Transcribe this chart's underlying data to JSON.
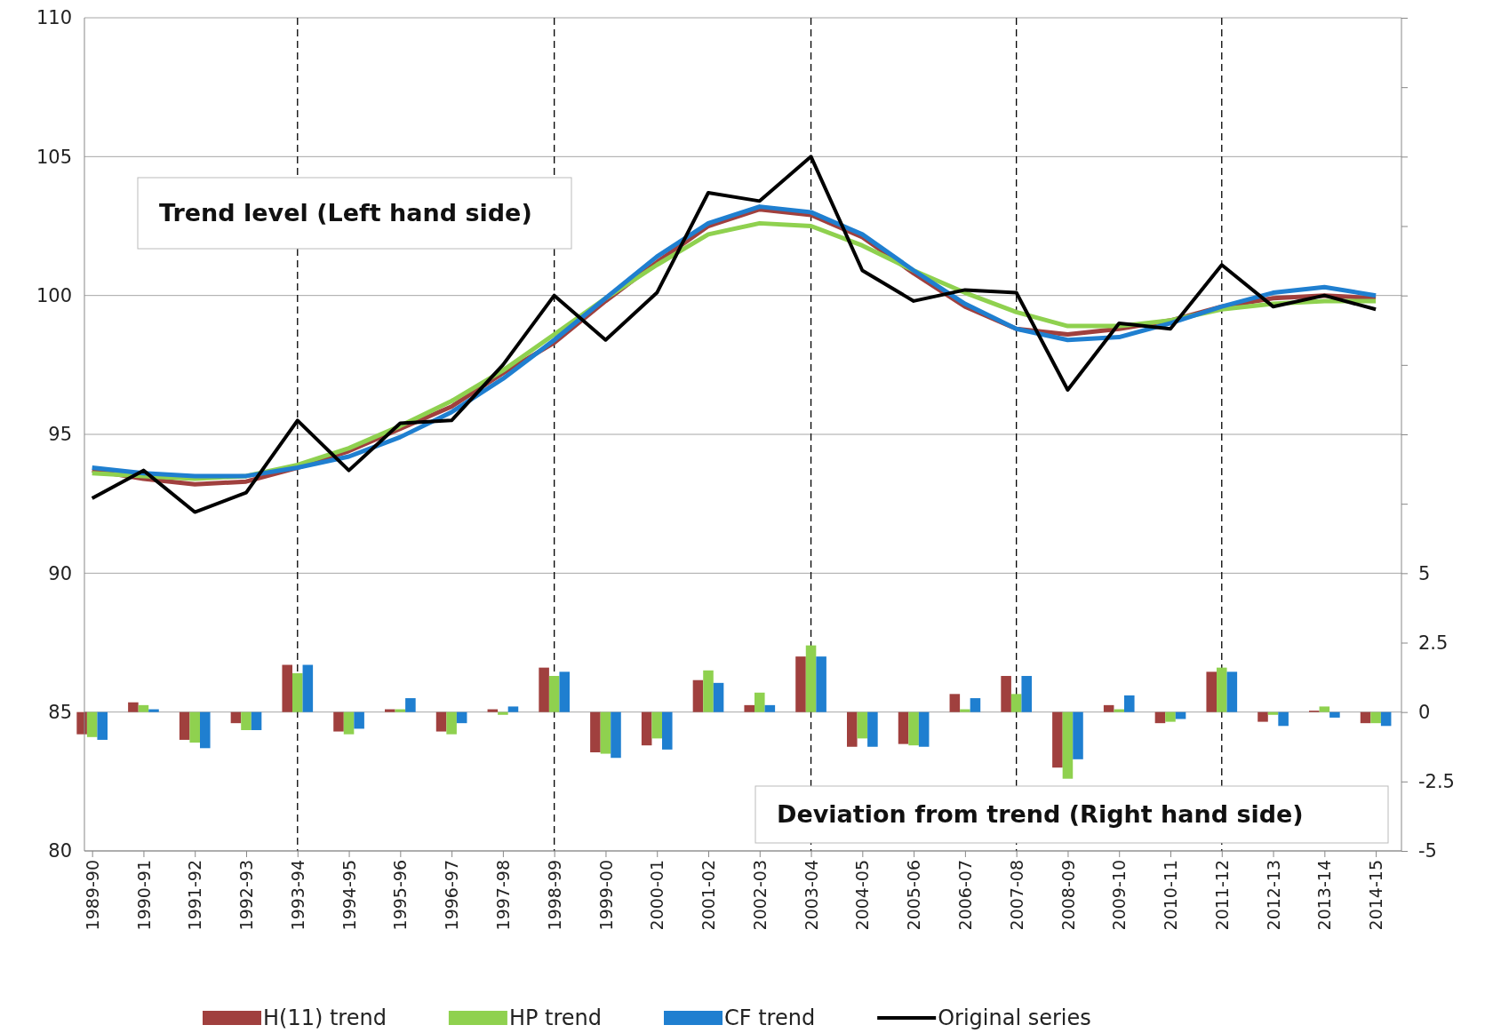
{
  "chart_data": {
    "type": "line",
    "categories": [
      "1989-90",
      "1990-91",
      "1991-92",
      "1992-93",
      "1993-94",
      "1994-95",
      "1995-96",
      "1996-97",
      "1997-98",
      "1998-99",
      "1999-00",
      "2000-01",
      "2001-02",
      "2002-03",
      "2003-04",
      "2004-05",
      "2005-06",
      "2006-07",
      "2007-08",
      "2008-09",
      "2009-10",
      "2010-11",
      "2011-12",
      "2012-13",
      "2013-14",
      "2014-15"
    ],
    "series": [
      {
        "name": "H(11) trend",
        "type": "bar",
        "axis": "y2",
        "color": "#a0403e",
        "values": [
          -0.8,
          0.35,
          -1.0,
          -0.4,
          1.7,
          -0.7,
          0.1,
          -0.7,
          0.1,
          1.6,
          -1.45,
          -1.2,
          1.15,
          0.25,
          2.0,
          -1.25,
          -1.15,
          0.65,
          1.3,
          -2.0,
          0.25,
          -0.4,
          1.45,
          -0.35,
          0.05,
          -0.4
        ]
      },
      {
        "name": "HP trend",
        "type": "bar",
        "axis": "y2",
        "color": "#8fd14f",
        "values": [
          -0.9,
          0.25,
          -1.1,
          -0.65,
          1.4,
          -0.8,
          0.1,
          -0.8,
          -0.1,
          1.3,
          -1.5,
          -0.95,
          1.5,
          0.7,
          2.4,
          -0.95,
          -1.2,
          0.1,
          0.65,
          -2.4,
          0.1,
          -0.35,
          1.6,
          -0.1,
          0.2,
          -0.4
        ]
      },
      {
        "name": "CF trend",
        "type": "bar",
        "axis": "y2",
        "color": "#1f7fd0",
        "values": [
          -1.0,
          0.1,
          -1.3,
          -0.65,
          1.7,
          -0.6,
          0.5,
          -0.4,
          0.2,
          1.45,
          -1.65,
          -1.35,
          1.05,
          0.25,
          2.0,
          -1.25,
          -1.25,
          0.5,
          1.3,
          -1.7,
          0.6,
          -0.25,
          1.45,
          -0.5,
          -0.2,
          -0.5
        ]
      },
      {
        "color": "#a0403e",
        "values": [
          93.7,
          93.4,
          93.2,
          93.3,
          93.8,
          94.4,
          95.2,
          96.0,
          97.2,
          98.3,
          99.8,
          101.2,
          102.5,
          103.1,
          102.9,
          102.1,
          100.8,
          99.6,
          98.8,
          98.6,
          98.8,
          99.1,
          99.6,
          99.9,
          100.0,
          99.9
        ]
      },
      {
        "color": "#8fd14f",
        "values": [
          93.6,
          93.5,
          93.4,
          93.5,
          93.9,
          94.5,
          95.3,
          96.2,
          97.3,
          98.6,
          99.9,
          101.1,
          102.2,
          102.6,
          102.5,
          101.8,
          100.9,
          100.1,
          99.4,
          98.9,
          98.9,
          99.1,
          99.5,
          99.7,
          99.8,
          99.8
        ]
      },
      {
        "color": "#1f7fd0",
        "values": [
          93.8,
          93.6,
          93.5,
          93.5,
          93.8,
          94.2,
          94.9,
          95.8,
          97.0,
          98.4,
          99.9,
          101.4,
          102.6,
          103.2,
          103.0,
          102.2,
          100.9,
          99.7,
          98.8,
          98.4,
          98.5,
          99.0,
          99.6,
          100.1,
          100.3,
          100.0
        ]
      },
      {
        "name": "Original series",
        "color": "#000000",
        "values": [
          92.7,
          93.7,
          92.2,
          92.9,
          95.5,
          93.7,
          95.4,
          95.5,
          97.5,
          100.0,
          98.4,
          100.1,
          103.7,
          103.4,
          105.0,
          100.9,
          99.8,
          100.2,
          100.1,
          96.6,
          99.0,
          98.8,
          101.1,
          99.6,
          100.0,
          99.5
        ]
      }
    ],
    "ylim": [
      80,
      110
    ],
    "yticks": [
      80,
      85,
      90,
      95,
      100,
      105,
      110
    ],
    "y2lim": [
      -5,
      25
    ],
    "y2ticks": [
      -5,
      -2.5,
      0,
      2.5,
      5,
      {
        "value": 7.5,
        "label": null
      },
      {
        "value": 10,
        "label": null
      },
      {
        "value": 12.5,
        "label": null
      },
      {
        "value": 15,
        "label": null
      },
      {
        "value": 17.5,
        "label": null
      },
      {
        "value": 20,
        "label": null
      },
      {
        "value": 22.5,
        "label": null
      },
      {
        "value": 25,
        "label": null
      }
    ],
    "ref_lines": [
      {
        "axis": "x",
        "value": "1993-94",
        "line_style": "dashed",
        "color": "#000000"
      },
      {
        "axis": "x",
        "value": "1998-99",
        "line_style": "dashed",
        "color": "#000000"
      },
      {
        "axis": "x",
        "value": "2003-04",
        "line_style": "dashed",
        "color": "#000000"
      },
      {
        "axis": "x",
        "value": "2007-08",
        "line_style": "dashed",
        "color": "#000000"
      },
      {
        "axis": "x",
        "value": "2011-12",
        "line_style": "dashed",
        "color": "#000000"
      }
    ],
    "annotations": [
      "Trend level (Left hand side)",
      "Deviation from trend (Right hand side)"
    ],
    "grid": "y",
    "legend": "bottom",
    "marker": "none",
    "line_style": "solid"
  }
}
